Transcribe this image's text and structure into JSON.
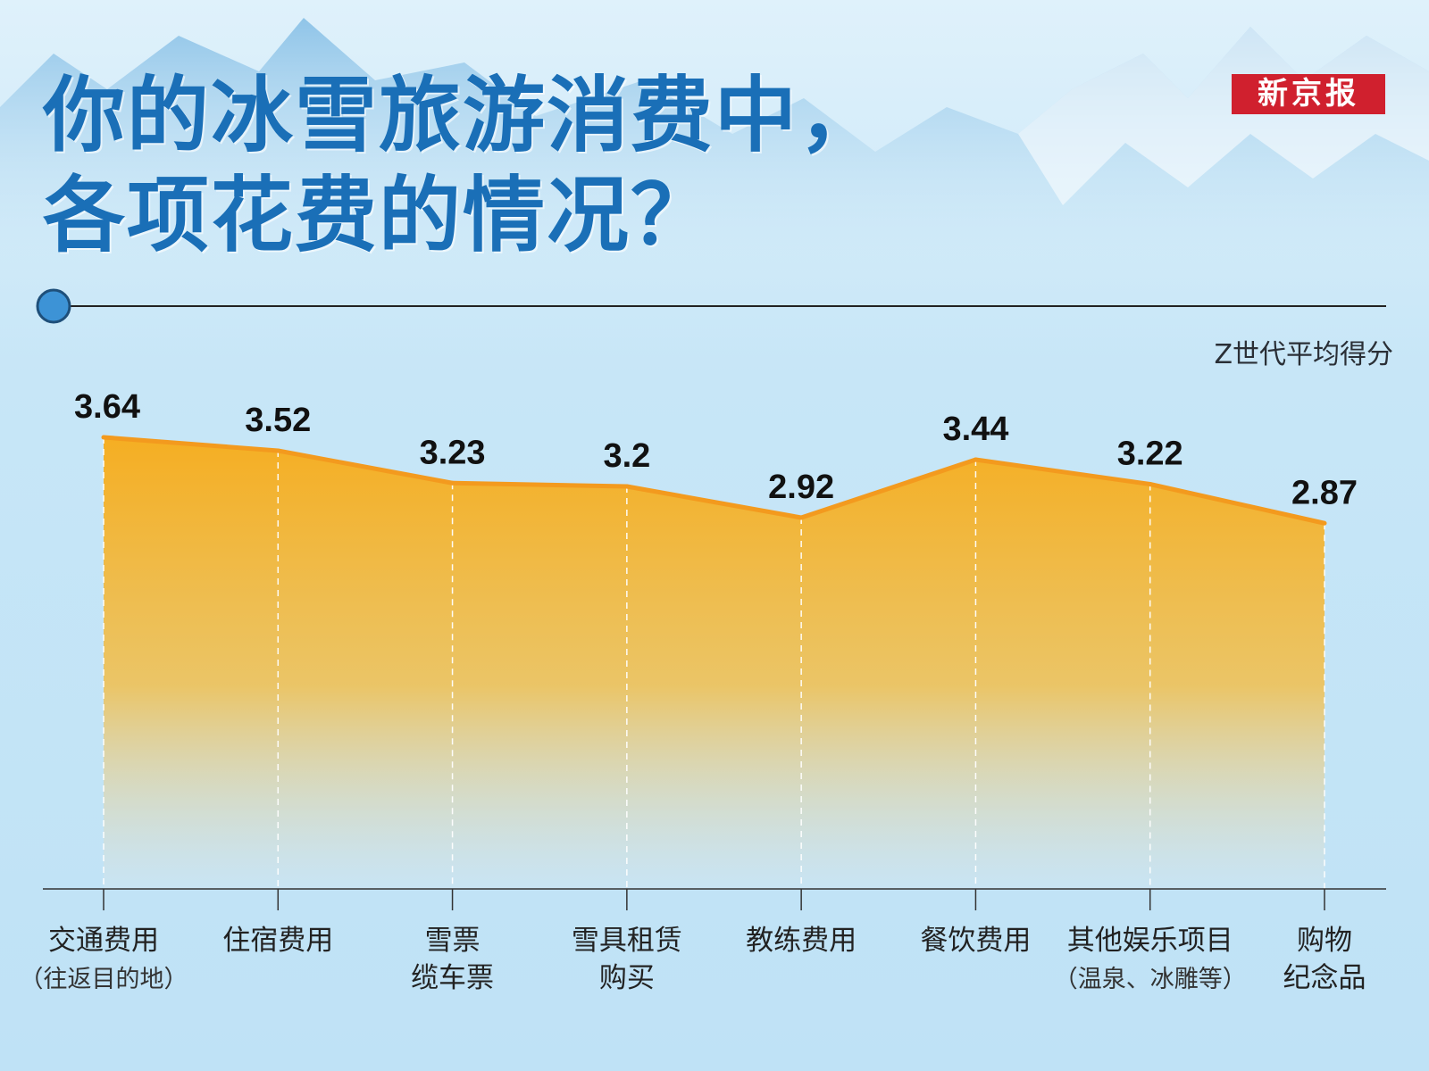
{
  "header": {
    "title_line1": "你的冰雪旅游消费中，",
    "title_line2": "各项花费的情况？",
    "logo": "新京报"
  },
  "legend": {
    "series_label": "Z世代平均得分"
  },
  "colors": {
    "title": "#1a6fb7",
    "line": "#f39a1e",
    "fill_top": "#f6ad1e",
    "fill_bottom": "#d6e6ee",
    "logo_bg": "#d0202e"
  },
  "chart_data": {
    "type": "area",
    "categories": [
      "交通费用（往返目的地）",
      "住宿费用",
      "雪票缆车票",
      "雪具租赁购买",
      "教练费用",
      "餐饮费用",
      "其他娱乐项目（温泉、冰雕等）",
      "购物纪念品"
    ],
    "category_lines": [
      [
        "交通费用",
        "（往返目的地）"
      ],
      [
        "住宿费用"
      ],
      [
        "雪票",
        "缆车票"
      ],
      [
        "雪具租赁",
        "购买"
      ],
      [
        "教练费用"
      ],
      [
        "餐饮费用"
      ],
      [
        "其他娱乐项目",
        "（温泉、冰雕等）"
      ],
      [
        "购物",
        "纪念品"
      ]
    ],
    "series": [
      {
        "name": "Z世代平均得分",
        "values": [
          3.64,
          3.52,
          3.23,
          3.2,
          2.92,
          3.44,
          3.22,
          2.87
        ]
      }
    ],
    "value_labels": [
      "3.64",
      "3.52",
      "3.23",
      "3.2",
      "2.92",
      "3.44",
      "3.22",
      "2.87"
    ],
    "data_labels": true,
    "grid": false
  }
}
